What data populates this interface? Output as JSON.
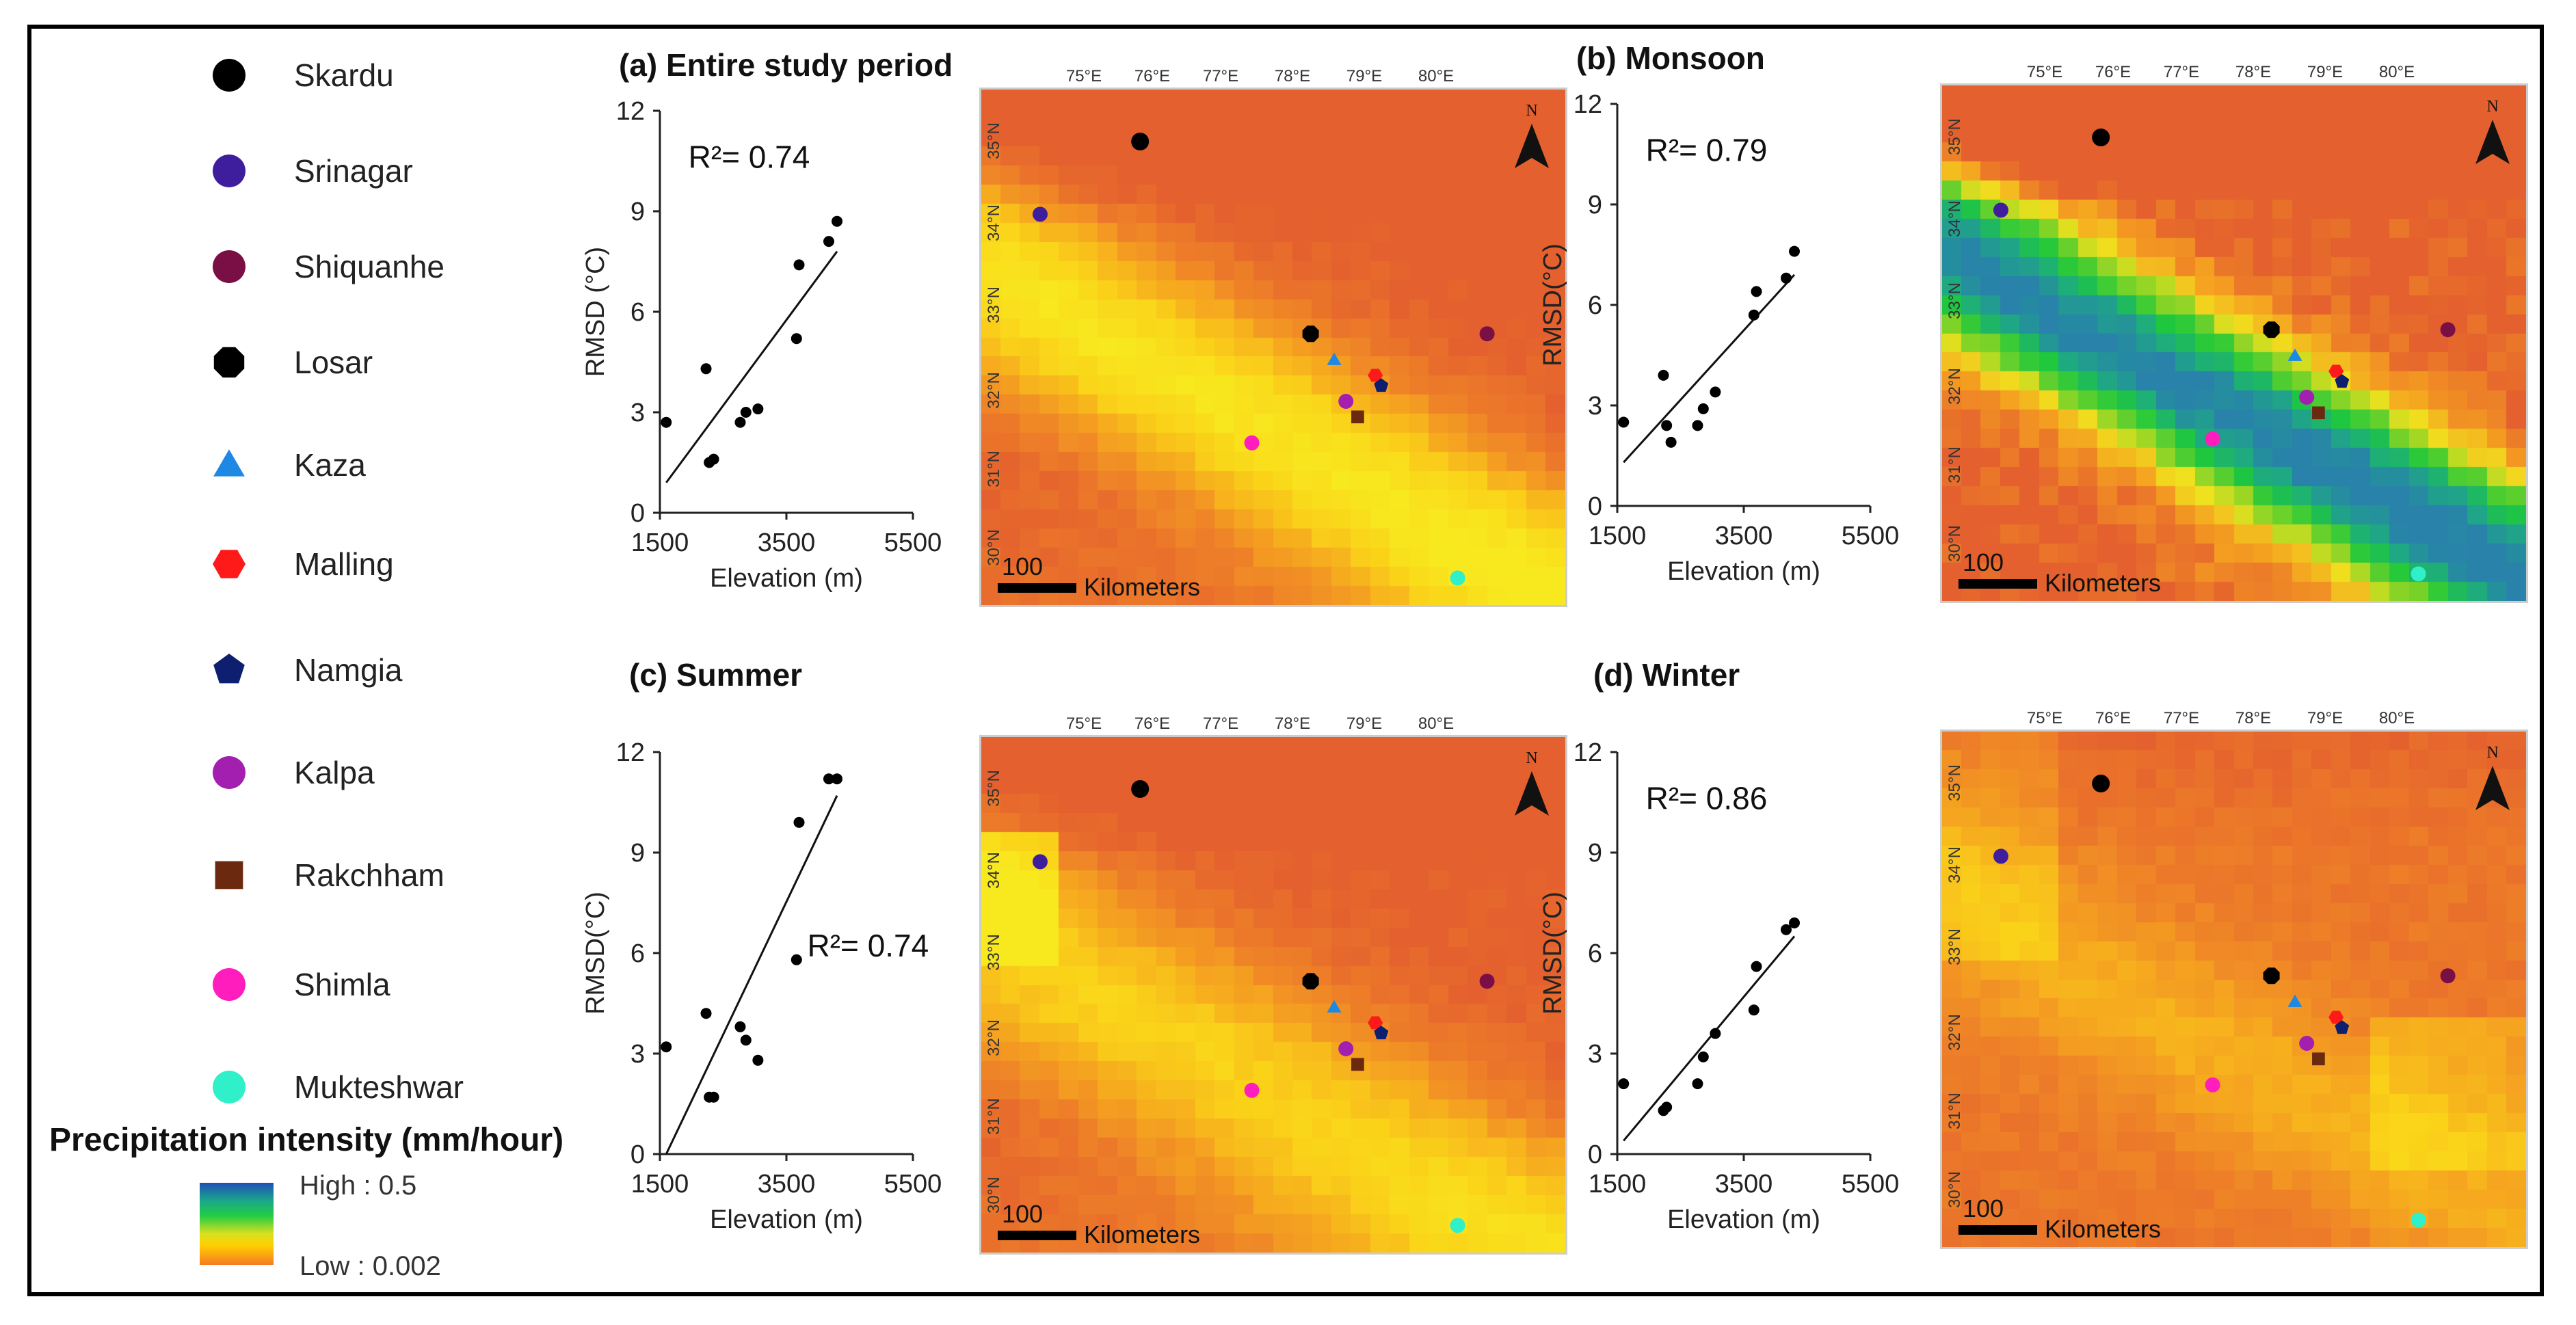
{
  "legend": {
    "stations": [
      {
        "name": "Skardu",
        "shape": "circle",
        "color": "#000000"
      },
      {
        "name": "Srinagar",
        "shape": "circle",
        "color": "#3f1e9e"
      },
      {
        "name": "Shiquanhe",
        "shape": "circle",
        "color": "#7a0f45"
      },
      {
        "name": "Losar",
        "shape": "octagon",
        "color": "#000000"
      },
      {
        "name": "Kaza",
        "shape": "triangle",
        "color": "#1e88e5"
      },
      {
        "name": "Malling",
        "shape": "hexagon",
        "color": "#ff1a1a"
      },
      {
        "name": "Namgia",
        "shape": "pentagon",
        "color": "#0d1f6e"
      },
      {
        "name": "Kalpa",
        "shape": "circle",
        "color": "#a21fb0"
      },
      {
        "name": "Rakchham",
        "shape": "square",
        "color": "#6b2a10"
      },
      {
        "name": "Shimla",
        "shape": "circle",
        "color": "#ff1dbd"
      },
      {
        "name": "Mukteshwar",
        "shape": "circle",
        "color": "#2ff0c8"
      }
    ],
    "precip_title": "Precipitation intensity (mm/hour)",
    "high_label": "High : 0.5",
    "low_label": "Low : 0.002"
  },
  "map_common": {
    "lon_ticks": [
      "75°E",
      "76°E",
      "77°E",
      "78°E",
      "79°E",
      "80°E"
    ],
    "lat_ticks": [
      "35°N",
      "34°N",
      "33°N",
      "32°N",
      "31°N",
      "30°N"
    ],
    "scale_number": "100",
    "scale_unit": "Kilometers",
    "north": "N"
  },
  "chart_data": [
    {
      "type": "scatter",
      "title": "(a) Entire study period",
      "xlabel": "Elevation (m)",
      "ylabel": "RMSD (°C)",
      "xlim": [
        1500,
        5500
      ],
      "ylim": [
        0,
        12
      ],
      "xticks": [
        "1500",
        "3500",
        "5500"
      ],
      "yticks": [
        "0",
        "3",
        "6",
        "9",
        "12"
      ],
      "r2": "R²= 0.74",
      "x": [
        1600,
        2230,
        2280,
        2350,
        2770,
        2860,
        3050,
        3660,
        3700,
        4170,
        4300
      ],
      "y": [
        2.7,
        4.3,
        1.5,
        1.6,
        2.7,
        3.0,
        3.1,
        5.2,
        7.4,
        8.1,
        8.7
      ],
      "fit": {
        "x": [
          1600,
          4300
        ],
        "y": [
          0.9,
          7.8
        ]
      },
      "map_style": "entire"
    },
    {
      "type": "scatter",
      "title": "(b) Monsoon",
      "xlabel": "Elevation (m)",
      "ylabel": "RMSD(°C)",
      "xlim": [
        1500,
        5500
      ],
      "ylim": [
        0,
        12
      ],
      "xticks": [
        "1500",
        "3500",
        "5500"
      ],
      "yticks": [
        "0",
        "3",
        "6",
        "9",
        "12"
      ],
      "r2": "R²= 0.79",
      "x": [
        1600,
        2230,
        2280,
        2350,
        2770,
        2860,
        3050,
        3660,
        3700,
        4170,
        4300
      ],
      "y": [
        2.5,
        3.9,
        2.4,
        1.9,
        2.4,
        2.9,
        3.4,
        5.7,
        6.4,
        6.8,
        7.6
      ],
      "fit": {
        "x": [
          1600,
          4300
        ],
        "y": [
          1.3,
          6.9
        ]
      },
      "map_style": "monsoon"
    },
    {
      "type": "scatter",
      "title": "(c) Summer",
      "xlabel": "Elevation (m)",
      "ylabel": "RMSD(°C)",
      "xlim": [
        1500,
        5500
      ],
      "ylim": [
        0,
        12
      ],
      "xticks": [
        "1500",
        "3500",
        "5500"
      ],
      "yticks": [
        "0",
        "3",
        "6",
        "9",
        "12"
      ],
      "r2": "R²= 0.74",
      "x": [
        1600,
        2230,
        2280,
        2350,
        2770,
        2860,
        3050,
        3660,
        3700,
        4170,
        4300
      ],
      "y": [
        3.2,
        4.2,
        1.7,
        1.7,
        3.8,
        3.4,
        2.8,
        5.8,
        9.9,
        11.2,
        11.2
      ],
      "fit": {
        "x": [
          1600,
          4300
        ],
        "y": [
          0.0,
          10.7
        ]
      },
      "map_style": "summer"
    },
    {
      "type": "scatter",
      "title": "(d) Winter",
      "xlabel": "Elevation (m)",
      "ylabel": "RMSD(°C)",
      "xlim": [
        1500,
        5500
      ],
      "ylim": [
        0,
        12
      ],
      "xticks": [
        "1500",
        "3500",
        "5500"
      ],
      "yticks": [
        "0",
        "3",
        "6",
        "9",
        "12"
      ],
      "r2": "R²= 0.86",
      "x": [
        1600,
        2230,
        2280,
        2770,
        2860,
        3050,
        3660,
        3700,
        4170,
        4300
      ],
      "y": [
        2.1,
        1.3,
        1.4,
        2.1,
        2.9,
        3.6,
        4.3,
        5.6,
        6.7,
        6.9
      ],
      "fit": {
        "x": [
          1600,
          4300
        ],
        "y": [
          0.4,
          6.5
        ]
      },
      "map_style": "winter"
    }
  ]
}
